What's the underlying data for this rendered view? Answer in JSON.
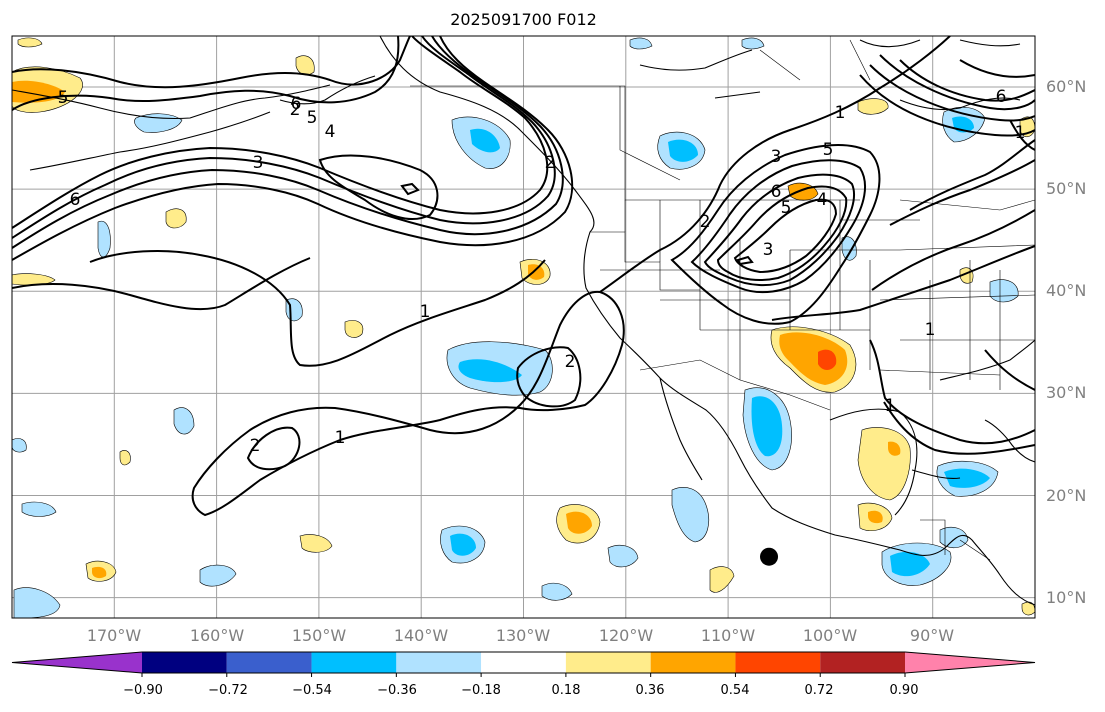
{
  "title": "2025091700 F012",
  "lat_labels": [
    "60°N",
    "50°N",
    "40°N",
    "30°N",
    "20°N",
    "10°N"
  ],
  "lat_values": [
    60,
    50,
    40,
    30,
    20,
    10
  ],
  "lon_labels": [
    "170°W",
    "160°W",
    "150°W",
    "140°W",
    "130°W",
    "120°W",
    "110°W",
    "100°W",
    "90°W"
  ],
  "lon_values": [
    -170,
    -160,
    -150,
    -140,
    -130,
    -120,
    -110,
    -100,
    -90
  ],
  "contour_labels": [
    "5",
    "6",
    "5",
    "4",
    "3",
    "6",
    "2",
    "2",
    "1",
    "3",
    "5",
    "6",
    "1",
    "5",
    "6",
    "1",
    "2",
    "3",
    "4",
    "2",
    "1",
    "2",
    "1",
    "1"
  ],
  "colorbar": {
    "colors": [
      "#9932cc",
      "#000080",
      "#3a5fcd",
      "#00bfff",
      "#b0e2ff",
      "#ffffff",
      "#ffec8b",
      "#ffa500",
      "#ff4500",
      "#b22222",
      "#ff82ab"
    ],
    "ticks": [
      "−0.90",
      "−0.72",
      "−0.54",
      "−0.36",
      "−0.18",
      "0.18",
      "0.36",
      "0.54",
      "0.72",
      "0.90"
    ]
  },
  "marker": {
    "lat": 14,
    "lon": -106
  }
}
